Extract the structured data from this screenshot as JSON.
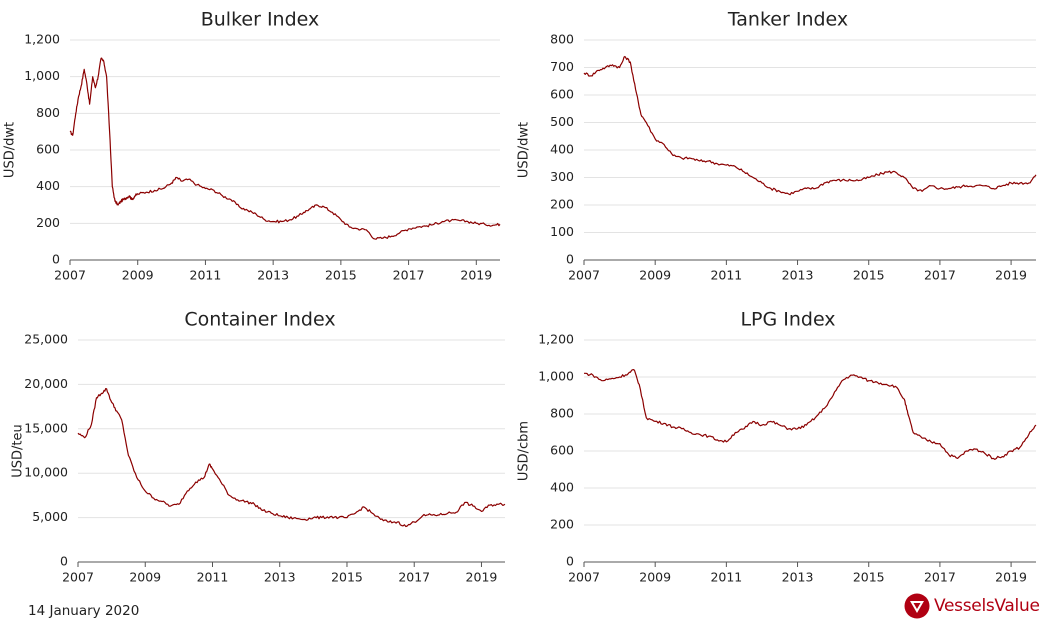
{
  "footer": {
    "date": "14 January 2020"
  },
  "brand": {
    "name": "VesselsValue",
    "color": "#b00012"
  },
  "line_color": "#8b0000",
  "chart_data": [
    {
      "type": "line",
      "title": "Bulker Index",
      "ylabel": "USD/dwt",
      "xlabel": "",
      "xlim": [
        2007,
        2019.7
      ],
      "ylim": [
        0,
        1200
      ],
      "x_ticks": [
        2007,
        2009,
        2011,
        2013,
        2015,
        2017,
        2019
      ],
      "y_ticks": [
        0,
        200,
        400,
        600,
        800,
        1000,
        1200
      ],
      "y_tick_labels": [
        "0",
        "200",
        "400",
        "600",
        "800",
        "1,000",
        "1,200"
      ],
      "grid": "horizontal",
      "series": [
        {
          "x": [
            2007.0,
            2007.08,
            2007.17,
            2007.25,
            2007.33,
            2007.42,
            2007.5,
            2007.58,
            2007.67,
            2007.75,
            2007.83,
            2007.92,
            2008.0,
            2008.08,
            2008.17,
            2008.25,
            2008.33,
            2008.42,
            2008.5,
            2008.58,
            2008.67,
            2008.75,
            2008.83,
            2008.92,
            2009.0,
            2009.25,
            2009.5,
            2009.75,
            2010.0,
            2010.15,
            2010.3,
            2010.5,
            2010.75,
            2011.0,
            2011.25,
            2011.5,
            2011.75,
            2012.0,
            2012.25,
            2012.5,
            2012.75,
            2013.0,
            2013.25,
            2013.5,
            2013.75,
            2013.9,
            2014.1,
            2014.3,
            2014.5,
            2014.75,
            2015.0,
            2015.25,
            2015.5,
            2015.75,
            2016.0,
            2016.25,
            2016.5,
            2016.75,
            2017.0,
            2017.25,
            2017.5,
            2017.75,
            2018.0,
            2018.25,
            2018.5,
            2018.75,
            2019.0,
            2019.25,
            2019.5,
            2019.7
          ],
          "values": [
            700,
            680,
            800,
            890,
            950,
            1040,
            960,
            850,
            1000,
            940,
            1000,
            1100,
            1080,
            1000,
            700,
            400,
            320,
            300,
            320,
            330,
            340,
            350,
            330,
            350,
            360,
            370,
            380,
            390,
            420,
            450,
            430,
            440,
            410,
            390,
            380,
            350,
            330,
            290,
            270,
            250,
            220,
            210,
            210,
            220,
            240,
            260,
            280,
            300,
            290,
            260,
            220,
            180,
            170,
            165,
            115,
            120,
            130,
            150,
            170,
            180,
            185,
            195,
            210,
            215,
            215,
            210,
            200,
            195,
            190,
            195
          ]
        }
      ]
    },
    {
      "type": "line",
      "title": "Tanker Index",
      "ylabel": "USD/dwt",
      "xlabel": "",
      "xlim": [
        2007,
        2019.7
      ],
      "ylim": [
        0,
        800
      ],
      "x_ticks": [
        2007,
        2009,
        2011,
        2013,
        2015,
        2017,
        2019
      ],
      "y_ticks": [
        0,
        100,
        200,
        300,
        400,
        500,
        600,
        700,
        800
      ],
      "y_tick_labels": [
        "0",
        "100",
        "200",
        "300",
        "400",
        "500",
        "600",
        "700",
        "800"
      ],
      "grid": "horizontal",
      "series": [
        {
          "x": [
            2007.0,
            2007.2,
            2007.4,
            2007.6,
            2007.8,
            2008.0,
            2008.15,
            2008.3,
            2008.45,
            2008.6,
            2008.75,
            2009.0,
            2009.25,
            2009.5,
            2009.75,
            2010.0,
            2010.25,
            2010.5,
            2010.75,
            2011.0,
            2011.25,
            2011.5,
            2011.75,
            2012.0,
            2012.25,
            2012.5,
            2012.75,
            2013.0,
            2013.25,
            2013.5,
            2013.75,
            2014.0,
            2014.25,
            2014.5,
            2014.75,
            2015.0,
            2015.25,
            2015.5,
            2015.75,
            2016.0,
            2016.25,
            2016.5,
            2016.75,
            2017.0,
            2017.25,
            2017.5,
            2017.75,
            2018.0,
            2018.25,
            2018.5,
            2018.75,
            2019.0,
            2019.25,
            2019.5,
            2019.7
          ],
          "values": [
            680,
            670,
            690,
            700,
            710,
            700,
            740,
            720,
            620,
            530,
            500,
            440,
            420,
            380,
            370,
            370,
            360,
            360,
            350,
            345,
            340,
            320,
            300,
            280,
            260,
            250,
            240,
            250,
            260,
            260,
            280,
            290,
            290,
            290,
            290,
            300,
            310,
            320,
            320,
            300,
            260,
            250,
            270,
            260,
            260,
            265,
            270,
            270,
            270,
            260,
            270,
            280,
            280,
            280,
            310
          ]
        }
      ]
    },
    {
      "type": "line",
      "title": "Container Index",
      "ylabel": "USD/teu",
      "xlabel": "",
      "xlim": [
        2007,
        2019.7
      ],
      "ylim": [
        0,
        25000
      ],
      "x_ticks": [
        2007,
        2009,
        2011,
        2013,
        2015,
        2017,
        2019
      ],
      "y_ticks": [
        0,
        5000,
        10000,
        15000,
        20000,
        25000
      ],
      "y_tick_labels": [
        "0",
        "5,000",
        "10,000",
        "15,000",
        "20,000",
        "25,000"
      ],
      "grid": "horizontal",
      "series": [
        {
          "x": [
            2007.0,
            2007.2,
            2007.4,
            2007.55,
            2007.7,
            2007.85,
            2008.0,
            2008.15,
            2008.3,
            2008.5,
            2008.75,
            2009.0,
            2009.25,
            2009.5,
            2009.75,
            2010.0,
            2010.25,
            2010.5,
            2010.75,
            2010.9,
            2011.0,
            2011.25,
            2011.5,
            2011.75,
            2012.0,
            2012.25,
            2012.5,
            2012.75,
            2013.0,
            2013.25,
            2013.5,
            2013.75,
            2014.0,
            2014.25,
            2014.5,
            2014.75,
            2015.0,
            2015.25,
            2015.5,
            2015.75,
            2016.0,
            2016.25,
            2016.5,
            2016.75,
            2017.0,
            2017.25,
            2017.5,
            2017.75,
            2018.0,
            2018.25,
            2018.5,
            2018.75,
            2019.0,
            2019.25,
            2019.5,
            2019.7
          ],
          "values": [
            14500,
            14000,
            15500,
            18500,
            19000,
            19500,
            18000,
            17000,
            16000,
            12000,
            9500,
            8000,
            7200,
            6800,
            6300,
            6500,
            8000,
            9000,
            9500,
            11000,
            10500,
            9000,
            7500,
            7000,
            6800,
            6500,
            5800,
            5500,
            5200,
            5000,
            4900,
            4800,
            5000,
            5000,
            5100,
            5000,
            5000,
            5500,
            6200,
            5500,
            4800,
            4500,
            4500,
            4000,
            4500,
            5200,
            5300,
            5300,
            5500,
            5600,
            6700,
            6300,
            5700,
            6400,
            6500,
            6500
          ]
        }
      ]
    },
    {
      "type": "line",
      "title": "LPG Index",
      "ylabel": "USD/cbm",
      "xlabel": "",
      "xlim": [
        2007,
        2019.7
      ],
      "ylim": [
        0,
        1200
      ],
      "x_ticks": [
        2007,
        2009,
        2011,
        2013,
        2015,
        2017,
        2019
      ],
      "y_ticks": [
        0,
        200,
        400,
        600,
        800,
        1000,
        1200
      ],
      "y_tick_labels": [
        "0",
        "200",
        "400",
        "600",
        "800",
        "1,000",
        "1,200"
      ],
      "grid": "horizontal",
      "series": [
        {
          "x": [
            2007.0,
            2007.25,
            2007.5,
            2007.75,
            2008.0,
            2008.25,
            2008.4,
            2008.55,
            2008.75,
            2009.0,
            2009.25,
            2009.5,
            2009.75,
            2010.0,
            2010.25,
            2010.5,
            2010.75,
            2011.0,
            2011.25,
            2011.5,
            2011.75,
            2012.0,
            2012.25,
            2012.5,
            2012.75,
            2013.0,
            2013.25,
            2013.5,
            2013.75,
            2014.0,
            2014.25,
            2014.5,
            2014.75,
            2015.0,
            2015.25,
            2015.5,
            2015.75,
            2016.0,
            2016.1,
            2016.25,
            2016.5,
            2016.75,
            2017.0,
            2017.25,
            2017.5,
            2017.75,
            2018.0,
            2018.25,
            2018.5,
            2018.75,
            2019.0,
            2019.25,
            2019.5,
            2019.7
          ],
          "values": [
            1020,
            1010,
            980,
            990,
            1000,
            1020,
            1040,
            960,
            780,
            760,
            750,
            730,
            720,
            700,
            690,
            680,
            660,
            650,
            700,
            720,
            760,
            740,
            760,
            740,
            720,
            720,
            740,
            780,
            830,
            900,
            980,
            1010,
            1000,
            980,
            970,
            960,
            950,
            880,
            800,
            700,
            670,
            650,
            640,
            580,
            560,
            600,
            610,
            590,
            560,
            570,
            600,
            620,
            690,
            740
          ]
        }
      ]
    }
  ]
}
